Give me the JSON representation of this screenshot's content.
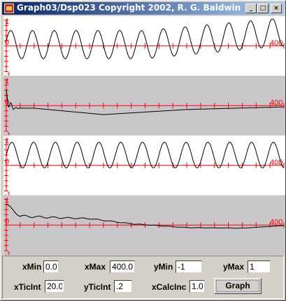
{
  "window": {
    "title": "Graph03/Dsp023 Copyright 2002, R. G. Baldwin",
    "minimize_glyph": "_",
    "maximize_glyph": "□",
    "close_glyph": "×"
  },
  "colors": {
    "axis": "#ff0000",
    "trace": "#000000",
    "panel_light": "#ffffff",
    "panel_dark": "#c8c6c8"
  },
  "chart_data": [
    {
      "type": "line",
      "background": "white",
      "xlim": [
        0,
        400
      ],
      "ylim": [
        -1,
        1
      ],
      "tick_labels": {
        "y_top": "1",
        "y_zero": "0",
        "y_bottom": "-1",
        "x_end": "400"
      },
      "x": [
        0,
        200,
        400
      ],
      "series": [
        {
          "description_values": [
            0.05,
            0.05,
            0.55
          ]
        }
      ]
    },
    {
      "type": "line",
      "background": "gray",
      "xlim": [
        0,
        400
      ],
      "ylim": [
        -1,
        1
      ],
      "tick_labels": {
        "y_top": "1",
        "y_zero": "0",
        "y_bottom": "-1",
        "x_end": "400"
      },
      "x": [
        0,
        10,
        40,
        140,
        260,
        400
      ],
      "series": [
        {
          "description_values": [
            0.25,
            -0.1,
            -0.1,
            -0.35,
            -0.15,
            -0.05
          ]
        }
      ]
    },
    {
      "type": "line",
      "background": "white",
      "xlim": [
        0,
        400
      ],
      "ylim": [
        -1,
        1
      ],
      "tick_labels": {
        "y_top": "1",
        "y_zero": "0",
        "y_bottom": "-1",
        "x_end": "400"
      },
      "x": [
        0,
        200,
        400
      ],
      "series": [
        {
          "description_values": [
            0.4,
            0.4,
            0.4
          ]
        }
      ]
    },
    {
      "type": "line",
      "background": "gray",
      "xlim": [
        0,
        400
      ],
      "ylim": [
        -1,
        1
      ],
      "tick_labels": {
        "y_top": "1",
        "y_zero": "0",
        "y_bottom": "-1",
        "x_end": "400"
      },
      "x": [
        0,
        20,
        60,
        120,
        180,
        260,
        340,
        400
      ],
      "series": [
        {
          "description_values": [
            0.8,
            0.35,
            0.3,
            0.25,
            0.05,
            -0.1,
            -0.12,
            -0.02
          ]
        }
      ]
    }
  ],
  "controls": {
    "xmin": {
      "label": "xMin",
      "value": "0.0"
    },
    "xmax": {
      "label": "xMax",
      "value": "400.0"
    },
    "ymin": {
      "label": "yMin",
      "value": "-1"
    },
    "ymax": {
      "label": "yMax",
      "value": "1"
    },
    "xticint": {
      "label": "xTicInt",
      "value": "20.0"
    },
    "yticint": {
      "label": "yTicInt",
      "value": ".2"
    },
    "xcalcinc": {
      "label": "xCalcInc",
      "value": "1.0"
    },
    "graph_button": "Graph"
  }
}
